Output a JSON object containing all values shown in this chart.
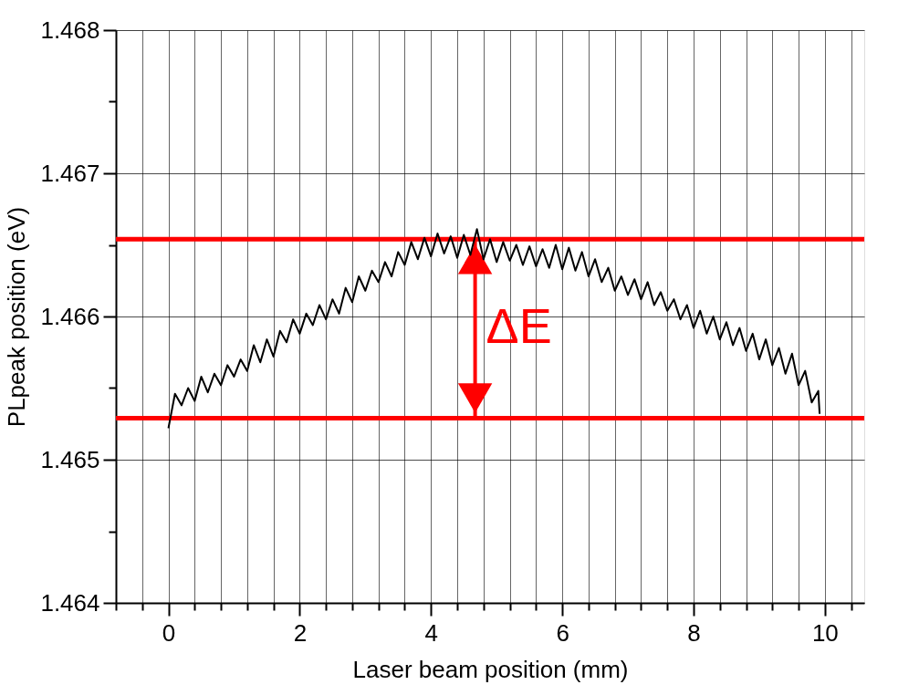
{
  "chart_data": {
    "type": "line",
    "xlabel": "Laser beam position (mm)",
    "ylabel": "PLpeak position (eV)",
    "xlim": [
      -0.8,
      10.6
    ],
    "ylim": [
      1.464,
      1.468
    ],
    "xticks": [
      {
        "value": -0.8,
        "label": null
      },
      {
        "value": -0.4,
        "label": null
      },
      0,
      {
        "value": 0.4,
        "label": null
      },
      {
        "value": 0.8,
        "label": null
      },
      {
        "value": 1.2,
        "label": null
      },
      {
        "value": 1.6,
        "label": null
      },
      2,
      {
        "value": 2.4,
        "label": null
      },
      {
        "value": 2.8,
        "label": null
      },
      {
        "value": 3.2,
        "label": null
      },
      {
        "value": 3.6,
        "label": null
      },
      4,
      {
        "value": 4.4,
        "label": null
      },
      {
        "value": 4.8,
        "label": null
      },
      {
        "value": 5.2,
        "label": null
      },
      {
        "value": 5.6,
        "label": null
      },
      6,
      {
        "value": 6.4,
        "label": null
      },
      {
        "value": 6.8,
        "label": null
      },
      {
        "value": 7.2,
        "label": null
      },
      {
        "value": 7.6,
        "label": null
      },
      8,
      {
        "value": 8.4,
        "label": null
      },
      {
        "value": 8.8,
        "label": null
      },
      {
        "value": 9.2,
        "label": null
      },
      {
        "value": 9.6,
        "label": null
      },
      10,
      {
        "value": 10.4,
        "label": null
      }
    ],
    "yticks": [
      1.464,
      {
        "value": 1.4645,
        "label": null
      },
      1.465,
      {
        "value": 1.4655,
        "label": null
      },
      1.466,
      {
        "value": 1.4665,
        "label": null
      },
      1.467,
      {
        "value": 1.4675,
        "label": null
      },
      1.468
    ],
    "grid": true,
    "x": [
      0,
      0.1,
      0.2,
      0.3,
      0.4,
      0.5,
      0.6,
      0.7,
      0.8,
      0.9,
      1.0,
      1.1,
      1.2,
      1.3,
      1.4,
      1.5,
      1.6,
      1.7,
      1.8,
      1.9,
      2.0,
      2.1,
      2.2,
      2.3,
      2.4,
      2.5,
      2.6,
      2.7,
      2.8,
      2.9,
      3.0,
      3.1,
      3.2,
      3.3,
      3.4,
      3.5,
      3.6,
      3.7,
      3.8,
      3.9,
      4.0,
      4.1,
      4.2,
      4.3,
      4.4,
      4.5,
      4.6,
      4.7,
      4.8,
      4.9,
      5.0,
      5.1,
      5.2,
      5.3,
      5.4,
      5.5,
      5.6,
      5.7,
      5.8,
      5.9,
      6.0,
      6.1,
      6.2,
      6.3,
      6.4,
      6.5,
      6.6,
      6.7,
      6.8,
      6.9,
      7.0,
      7.1,
      7.2,
      7.3,
      7.4,
      7.5,
      7.6,
      7.7,
      7.8,
      7.9,
      8.0,
      8.1,
      8.2,
      8.3,
      8.4,
      8.5,
      8.6,
      8.7,
      8.8,
      8.9,
      9.0,
      9.1,
      9.2,
      9.3,
      9.4,
      9.5,
      9.6,
      9.7,
      9.8,
      9.9,
      9.92
    ],
    "series": [
      {
        "color": "#000000",
        "values": [
          1.46522,
          1.46546,
          1.46538,
          1.4655,
          1.46541,
          1.46558,
          1.46547,
          1.4656,
          1.46552,
          1.46566,
          1.46558,
          1.4657,
          1.46562,
          1.4658,
          1.46568,
          1.46584,
          1.46572,
          1.4659,
          1.46582,
          1.46598,
          1.46588,
          1.46602,
          1.46594,
          1.46608,
          1.46598,
          1.46612,
          1.46602,
          1.4662,
          1.4661,
          1.46628,
          1.46618,
          1.46632,
          1.46624,
          1.46638,
          1.46628,
          1.46645,
          1.46636,
          1.46652,
          1.4664,
          1.46655,
          1.46642,
          1.46658,
          1.46644,
          1.46656,
          1.46641,
          1.46657,
          1.46643,
          1.46661,
          1.4664,
          1.46654,
          1.46638,
          1.46652,
          1.46639,
          1.4665,
          1.46636,
          1.46649,
          1.46635,
          1.46647,
          1.46634,
          1.4665,
          1.46633,
          1.46648,
          1.46632,
          1.46645,
          1.46628,
          1.4664,
          1.46624,
          1.46634,
          1.46618,
          1.46628,
          1.46615,
          1.46626,
          1.46612,
          1.46624,
          1.46608,
          1.46617,
          1.46604,
          1.46612,
          1.46598,
          1.46608,
          1.46592,
          1.46604,
          1.46588,
          1.466,
          1.46584,
          1.46596,
          1.4658,
          1.46592,
          1.46576,
          1.46588,
          1.4657,
          1.46584,
          1.46566,
          1.46578,
          1.4656,
          1.46574,
          1.46552,
          1.46562,
          1.4654,
          1.46548,
          1.46532
        ]
      }
    ],
    "ref_lines": [
      {
        "axis": "y",
        "value": 1.46654,
        "color": "#ff0000"
      },
      {
        "axis": "y",
        "value": 1.46529,
        "color": "#ff0000"
      }
    ],
    "annotations": [
      "ΔE"
    ]
  }
}
